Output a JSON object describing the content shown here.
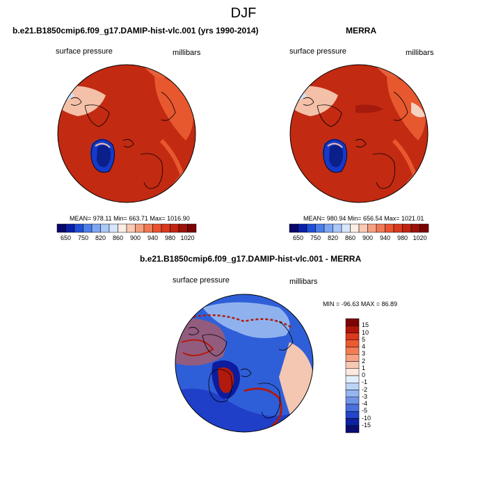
{
  "title": "DJF",
  "panels": [
    {
      "title": "b.e21.B1850cmip6.f09_g17.DAMIP-hist-vlc.001 (yrs 1990-2014)",
      "variable_label": "surface pressure",
      "units_label": "millibars",
      "stats": "MEAN= 978.11  Min= 663.71  Max= 1016.90",
      "colorbar_ticks": [
        "650",
        "750",
        "820",
        "860",
        "900",
        "940",
        "980",
        "1020"
      ]
    },
    {
      "title": "MERRA",
      "variable_label": "surface pressure",
      "units_label": "millibars",
      "stats": "MEAN= 980.94  Min= 656.54  Max= 1021.01",
      "colorbar_ticks": [
        "650",
        "750",
        "820",
        "860",
        "900",
        "940",
        "980",
        "1020"
      ]
    },
    {
      "title": "b.e21.B1850cmip6.f09_g17.DAMIP-hist-vlc.001 - MERRA",
      "variable_label": "surface pressure",
      "units_label": "millibars",
      "stats": "MIN = -96.63 MAX =  86.89",
      "colorbar_ticks": [
        "15",
        "10",
        "5",
        "4",
        "3",
        "2",
        "1",
        "0",
        "-1",
        "-2",
        "-3",
        "-4",
        "-5",
        "-10",
        "-15"
      ]
    }
  ],
  "colors": {
    "abs_colorbar": [
      "#08086b",
      "#0a1fa8",
      "#1f4fd6",
      "#4d7ee8",
      "#7da6f2",
      "#aac8f7",
      "#d7e6fb",
      "#fbeee4",
      "#f9c9b3",
      "#f6a081",
      "#f07a55",
      "#e9532f",
      "#d9391c",
      "#c22412",
      "#9c1209",
      "#7a0404"
    ],
    "diff_colorbar": [
      "#7a0404",
      "#b01409",
      "#d9391c",
      "#ec5a32",
      "#f27c55",
      "#f6a383",
      "#f8c8b5",
      "#fbe8df",
      "#e2eefb",
      "#bcd3f6",
      "#94b5ef",
      "#6f93e6",
      "#4a70dc",
      "#2345c8",
      "#0d22a0",
      "#080d6e"
    ],
    "map_ocean": "#c22a12",
    "map_land": "#e8582f",
    "greenland": "#1539c9"
  }
}
